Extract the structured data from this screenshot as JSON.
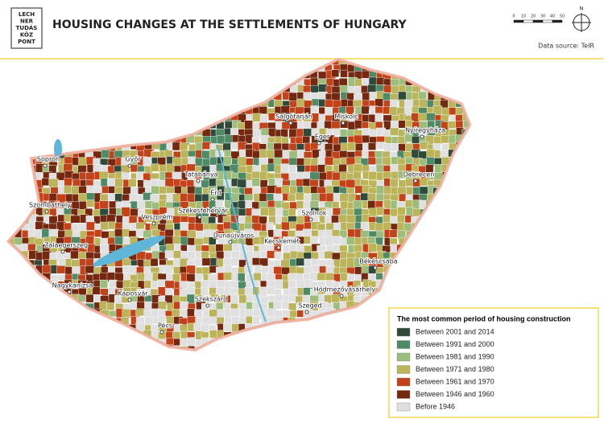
{
  "logo": {
    "lines": [
      "LECH",
      "NER",
      "TUDÁS",
      "KÖZ",
      "PONT"
    ]
  },
  "header": {
    "title": "HOUSING CHANGES AT THE SETTLEMENTS OF HUNGARY",
    "data_source": "Data source: TeIR"
  },
  "scale_bar": {
    "ticks": [
      0,
      10,
      20,
      30,
      40,
      50
    ]
  },
  "compass": {
    "label": "N"
  },
  "cities": [
    "Salgótarján",
    "Miskolc",
    "Eger",
    "Nyíregyháza",
    "Sopron",
    "Győr",
    "Tatabánya",
    "Debrecen",
    "Érd",
    "Szombathely",
    "Székesfehérvár",
    "Szolnok",
    "Veszprém",
    "Dunaújváros",
    "Kecskemét",
    "Zalaegerszeg",
    "Békéscsaba",
    "Nagykanizsa",
    "Kaposvár",
    "Hódmezővásárhely",
    "Szekszárd",
    "Szeged",
    "Pécs"
  ],
  "legend": {
    "title": "The most common period of housing construction",
    "items": [
      {
        "label": "Between 2001 and 2014",
        "color": "#2f4a3a"
      },
      {
        "label": "Between 1991 and 2000",
        "color": "#4f8a66"
      },
      {
        "label": "Between 1981 and 1990",
        "color": "#9dbd7c"
      },
      {
        "label": "Between 1971 and 1980",
        "color": "#bcb45a"
      },
      {
        "label": "Between 1961 and 1970",
        "color": "#c2421a"
      },
      {
        "label": "Between 1946 and 1960",
        "color": "#73280f"
      },
      {
        "label": "Before 1946",
        "color": "#e0e0e0"
      }
    ]
  }
}
